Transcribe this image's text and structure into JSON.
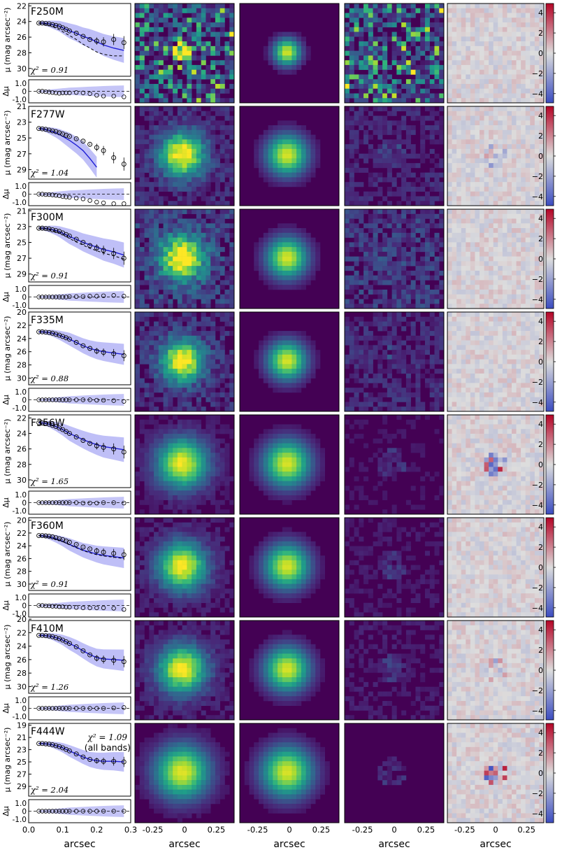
{
  "figure": {
    "xlabel": "arcsec",
    "global_chi2": "χ² = 1.09",
    "global_chi2_note": "(all bands)",
    "residual_ylabel": "Δμ",
    "profile_ylabel": "μ (mag arcsec⁻²)",
    "colorbar_ticks": [
      "4",
      "2",
      "0",
      "−2",
      "−4"
    ],
    "image_xticks": [
      "-0.25",
      "0",
      "0.25"
    ],
    "profile_xticks": [
      "0.0",
      "0.1",
      "0.2",
      "0.3"
    ],
    "colors": {
      "model": "#1f1fd6",
      "band": "#8b8bf0",
      "viridis_dark": "#440154",
      "viridis_mid": "#21918c",
      "viridis_bright": "#fde725"
    }
  },
  "chart_data": [
    {
      "type": "scatter",
      "band": "F250M",
      "chi2": "χ² = 0.91",
      "ylim": [
        31,
        21.7
      ],
      "yticks": [
        "22",
        "24",
        "26",
        "28",
        "30"
      ],
      "x": [
        0.03,
        0.04,
        0.05,
        0.06,
        0.07,
        0.08,
        0.09,
        0.1,
        0.11,
        0.12,
        0.14,
        0.16,
        0.18,
        0.2,
        0.22,
        0.25,
        0.28
      ],
      "y": [
        24.2,
        24.2,
        24.25,
        24.3,
        24.4,
        24.5,
        24.6,
        24.8,
        25.0,
        25.2,
        25.5,
        25.9,
        26.3,
        26.5,
        26.6,
        26.3,
        26.7
      ],
      "model_y": [
        24.2,
        24.2,
        24.25,
        24.3,
        24.4,
        24.5,
        24.6,
        24.8,
        25.0,
        25.2,
        25.5,
        25.9,
        26.2,
        26.6,
        27.0,
        27.4,
        27.7
      ],
      "psf_y": [
        24.2,
        24.25,
        24.35,
        24.5,
        24.65,
        24.85,
        25.05,
        25.3,
        25.55,
        25.8,
        26.3,
        26.9,
        27.4,
        27.9,
        28.2,
        28.4,
        28.4
      ],
      "residuals": [
        0,
        0,
        -0.05,
        -0.1,
        -0.15,
        -0.2,
        -0.25,
        -0.2,
        -0.2,
        -0.2,
        -0.15,
        -0.2,
        -0.3,
        -0.5,
        -0.6,
        -0.6,
        -0.7
      ]
    },
    {
      "type": "scatter",
      "band": "F277W",
      "chi2": "χ² = 1.04",
      "ylim": [
        30.2,
        21.0
      ],
      "yticks": [
        "21",
        "23",
        "25",
        "27",
        "29"
      ],
      "x": [
        0.03,
        0.04,
        0.05,
        0.06,
        0.07,
        0.08,
        0.09,
        0.1,
        0.11,
        0.12,
        0.14,
        0.16,
        0.18,
        0.2,
        0.22,
        0.25,
        0.28
      ],
      "y": [
        23.8,
        23.85,
        23.9,
        24.0,
        24.1,
        24.2,
        24.35,
        24.5,
        24.65,
        24.8,
        25.1,
        25.4,
        25.8,
        26.2,
        26.6,
        27.5,
        28.3
      ],
      "model_y": [
        23.8,
        23.85,
        23.95,
        24.05,
        24.2,
        24.35,
        24.55,
        24.8,
        25.05,
        25.3,
        25.9,
        26.6,
        27.6,
        28.7,
        null,
        null,
        null
      ],
      "psf_y": [],
      "residuals": [
        0,
        0,
        -0.05,
        -0.05,
        -0.1,
        -0.15,
        -0.2,
        -0.3,
        -0.35,
        -0.4,
        -0.5,
        -0.6,
        -0.8,
        -1.0,
        -1.1,
        -1.2,
        -1.2
      ]
    },
    {
      "type": "scatter",
      "band": "F300M",
      "chi2": "χ² = 0.91",
      "ylim": [
        30.0,
        20.8
      ],
      "yticks": [
        "21",
        "23",
        "25",
        "27",
        "29"
      ],
      "x": [
        0.03,
        0.04,
        0.05,
        0.06,
        0.07,
        0.08,
        0.09,
        0.1,
        0.11,
        0.12,
        0.14,
        0.16,
        0.18,
        0.2,
        0.22,
        0.25,
        0.28
      ],
      "y": [
        23.2,
        23.2,
        23.25,
        23.3,
        23.4,
        23.5,
        23.6,
        23.8,
        24.0,
        24.2,
        24.6,
        25.0,
        25.4,
        25.7,
        26.0,
        26.4,
        27.0
      ],
      "model_y": [
        23.2,
        23.2,
        23.25,
        23.3,
        23.4,
        23.5,
        23.65,
        23.85,
        24.05,
        24.25,
        24.6,
        25.0,
        25.3,
        25.6,
        25.9,
        26.2,
        26.6
      ],
      "psf_y": [
        23.2,
        23.25,
        23.3,
        23.4,
        23.5,
        23.65,
        23.8,
        24.0,
        24.25,
        24.5,
        24.95,
        25.35,
        25.75,
        26.05,
        26.35,
        26.7,
        27.1
      ],
      "residuals": [
        0,
        0,
        0,
        0,
        0,
        0,
        0,
        0,
        0,
        0.05,
        0.05,
        0.05,
        0.1,
        0.1,
        0.15,
        0.2,
        0.1
      ]
    },
    {
      "type": "scatter",
      "band": "F335M",
      "chi2": "χ² = 0.88",
      "ylim": [
        31.0,
        20.0
      ],
      "yticks": [
        "20",
        "22",
        "24",
        "26",
        "28",
        "30"
      ],
      "x": [
        0.03,
        0.04,
        0.05,
        0.06,
        0.07,
        0.08,
        0.09,
        0.1,
        0.11,
        0.12,
        0.14,
        0.16,
        0.18,
        0.2,
        0.22,
        0.25,
        0.28
      ],
      "y": [
        23.0,
        23.0,
        23.05,
        23.1,
        23.2,
        23.35,
        23.5,
        23.7,
        23.9,
        24.1,
        24.6,
        25.1,
        25.5,
        25.9,
        26.1,
        26.3,
        26.6
      ],
      "model_y": [
        23.0,
        23.0,
        23.05,
        23.1,
        23.2,
        23.35,
        23.5,
        23.7,
        23.9,
        24.1,
        24.6,
        25.1,
        25.5,
        25.8,
        26.0,
        26.2,
        26.4
      ],
      "psf_y": [],
      "residuals": [
        0,
        0,
        0,
        0,
        0,
        0,
        0,
        0,
        0,
        0,
        0,
        0,
        0,
        -0.05,
        -0.05,
        -0.1,
        -0.2
      ]
    },
    {
      "type": "scatter",
      "band": "F356W",
      "chi2": "χ² = 1.65",
      "ylim": [
        31.0,
        21.6
      ],
      "yticks": [
        "22",
        "24",
        "26",
        "28",
        "30"
      ],
      "x": [
        0.03,
        0.04,
        0.05,
        0.06,
        0.07,
        0.08,
        0.09,
        0.1,
        0.11,
        0.12,
        0.14,
        0.16,
        0.18,
        0.2,
        0.22,
        0.25,
        0.28
      ],
      "y": [
        22.6,
        22.65,
        22.7,
        22.8,
        22.95,
        23.1,
        23.3,
        23.5,
        23.75,
        24.0,
        24.45,
        24.9,
        25.3,
        25.6,
        25.8,
        26.0,
        26.4
      ],
      "model_y": [
        22.6,
        22.65,
        22.7,
        22.8,
        22.95,
        23.1,
        23.3,
        23.5,
        23.75,
        24.0,
        24.4,
        24.8,
        25.15,
        25.45,
        25.7,
        25.9,
        26.1
      ],
      "psf_y": [],
      "residuals": [
        0,
        0,
        0,
        0,
        0,
        0,
        0,
        0,
        0,
        0,
        0,
        -0.05,
        -0.05,
        -0.05,
        0,
        0,
        -0.05
      ]
    },
    {
      "type": "scatter",
      "band": "F360M",
      "chi2": "χ² = 0.91",
      "ylim": [
        31.0,
        19.6
      ],
      "yticks": [
        "20",
        "22",
        "24",
        "26",
        "28",
        "30"
      ],
      "x": [
        0.03,
        0.04,
        0.05,
        0.06,
        0.07,
        0.08,
        0.09,
        0.1,
        0.11,
        0.12,
        0.14,
        0.16,
        0.18,
        0.2,
        0.22,
        0.25,
        0.28
      ],
      "y": [
        22.4,
        22.4,
        22.45,
        22.5,
        22.6,
        22.75,
        22.9,
        23.05,
        23.25,
        23.45,
        23.8,
        24.2,
        24.5,
        24.8,
        25.0,
        25.2,
        25.4
      ],
      "model_y": [
        22.4,
        22.45,
        22.5,
        22.6,
        22.75,
        22.9,
        23.1,
        23.3,
        23.55,
        23.8,
        24.25,
        24.7,
        25.0,
        25.3,
        25.5,
        25.7,
        25.9
      ],
      "psf_y": [
        22.4,
        22.45,
        22.55,
        22.65,
        22.8,
        22.95,
        23.15,
        23.35,
        23.6,
        23.85,
        24.3,
        24.75,
        25.1,
        25.4,
        25.6,
        25.8,
        26.0
      ],
      "residuals": [
        0,
        0,
        -0.05,
        -0.05,
        -0.1,
        -0.1,
        -0.15,
        -0.15,
        -0.2,
        -0.2,
        -0.25,
        -0.3,
        -0.3,
        -0.3,
        -0.3,
        -0.35,
        -0.5
      ]
    },
    {
      "type": "scatter",
      "band": "F410M",
      "chi2": "χ² = 1.26",
      "ylim": [
        31.0,
        20.2
      ],
      "yticks": [
        "20",
        "22",
        "24",
        "26",
        "28",
        "30"
      ],
      "x": [
        0.03,
        0.04,
        0.05,
        0.06,
        0.07,
        0.08,
        0.09,
        0.1,
        0.11,
        0.12,
        0.14,
        0.16,
        0.18,
        0.2,
        0.22,
        0.25,
        0.28
      ],
      "y": [
        22.4,
        22.4,
        22.45,
        22.5,
        22.6,
        22.75,
        22.9,
        23.1,
        23.35,
        23.6,
        24.1,
        24.7,
        25.3,
        25.8,
        26.0,
        26.1,
        26.3
      ],
      "model_y": [
        22.4,
        22.4,
        22.45,
        22.5,
        22.6,
        22.75,
        22.9,
        23.1,
        23.35,
        23.6,
        24.1,
        24.7,
        25.25,
        25.7,
        25.9,
        26.0,
        26.1
      ],
      "psf_y": [],
      "residuals": [
        0,
        0,
        0,
        0,
        0,
        0,
        0,
        0,
        0,
        0,
        0,
        0,
        0,
        0,
        0,
        0.05,
        0.1
      ]
    },
    {
      "type": "scatter",
      "band": "F444W",
      "chi2": "χ² = 2.04",
      "ylim": [
        30.6,
        18.7
      ],
      "yticks": [
        "19",
        "21",
        "23",
        "25",
        "27",
        "29"
      ],
      "x": [
        0.03,
        0.04,
        0.05,
        0.06,
        0.07,
        0.08,
        0.09,
        0.1,
        0.11,
        0.12,
        0.14,
        0.16,
        0.18,
        0.2,
        0.22,
        0.25,
        0.28
      ],
      "y": [
        22.0,
        22.0,
        22.05,
        22.1,
        22.2,
        22.35,
        22.5,
        22.7,
        22.95,
        23.2,
        23.7,
        24.2,
        24.6,
        24.8,
        24.9,
        24.9,
        25.0
      ],
      "model_y": [
        22.0,
        22.0,
        22.05,
        22.1,
        22.2,
        22.35,
        22.5,
        22.7,
        22.95,
        23.2,
        23.7,
        24.2,
        24.6,
        24.8,
        24.9,
        24.9,
        25.0
      ],
      "psf_y": [],
      "residuals": [
        0,
        0,
        0,
        0,
        0,
        0,
        0,
        0,
        0,
        0,
        0,
        0,
        0,
        0,
        0,
        0,
        0
      ]
    }
  ]
}
